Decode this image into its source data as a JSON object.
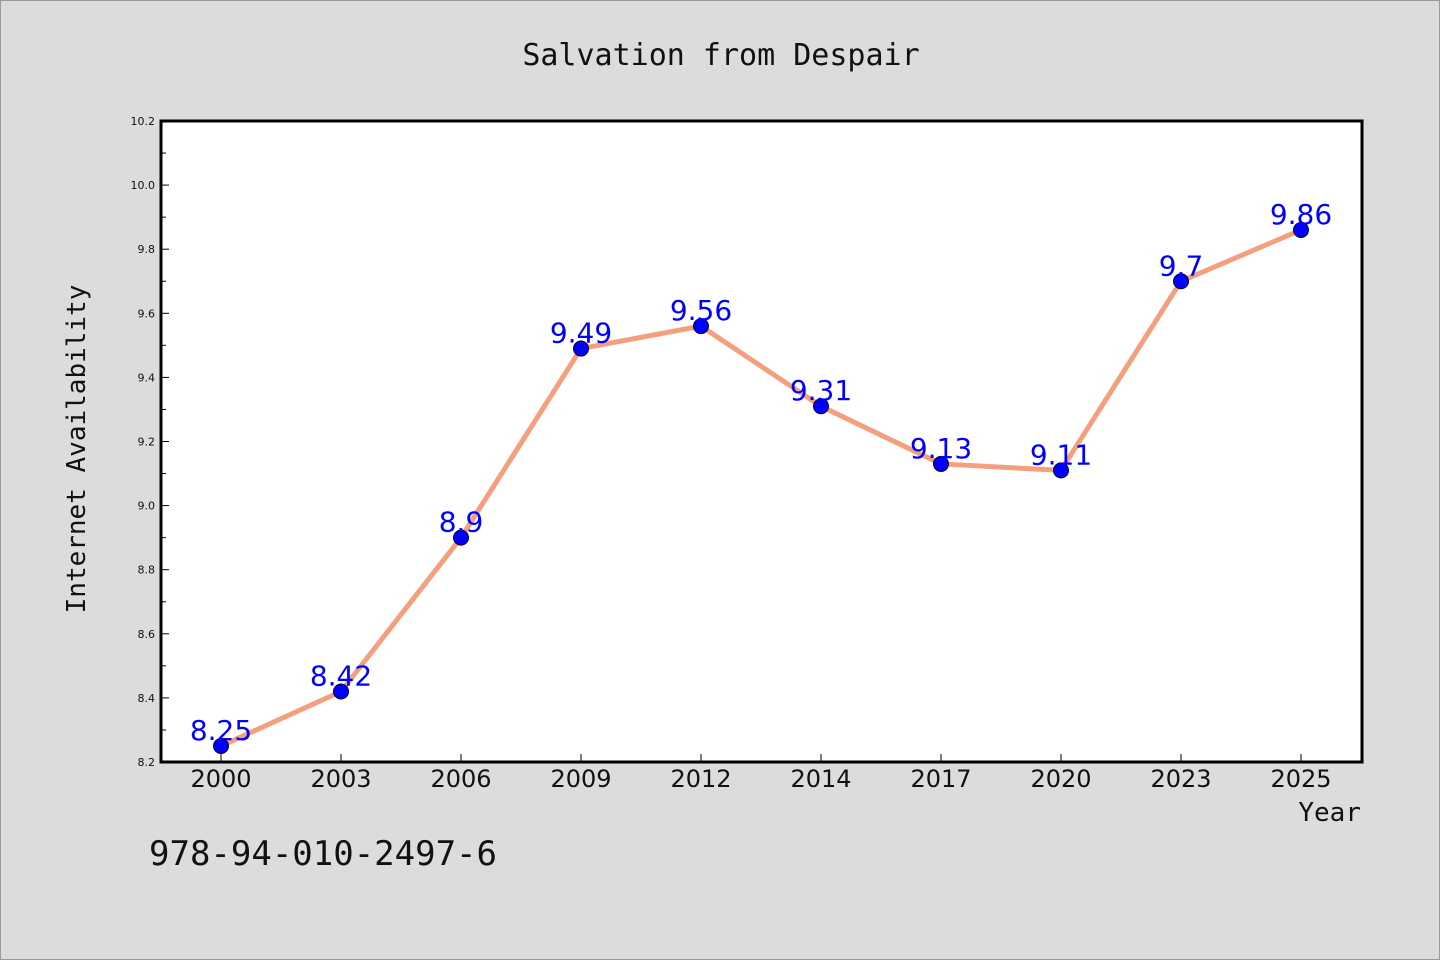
{
  "chart_data": {
    "type": "line",
    "title": "Salvation from Despair",
    "xlabel": "Year",
    "ylabel": "Internet Availability",
    "categories": [
      "2000",
      "2003",
      "2006",
      "2009",
      "2012",
      "2014",
      "2017",
      "2020",
      "2023",
      "2025"
    ],
    "series": [
      {
        "values": [
          8.25,
          8.42,
          8.9,
          9.49,
          9.56,
          9.31,
          9.13,
          9.11,
          9.7,
          9.86
        ],
        "labels": [
          "8.25",
          "8.42",
          "8.9",
          "9.49",
          "9.56",
          "9.31",
          "9.13",
          "9.11",
          "9.7",
          "9.86"
        ]
      }
    ],
    "ylim": [
      8.2,
      10.2
    ],
    "yticks": [
      "8.2",
      "8.4",
      "8.6",
      "8.8",
      "9.0",
      "9.2",
      "9.4",
      "9.6",
      "9.8",
      "10.0",
      "10.2"
    ],
    "grid": false,
    "line_color": "#f4a07e",
    "marker_color": "#0000ff",
    "label_color": "#0000ff",
    "background_color": "#dcdcdc",
    "plot_background": "#ffffff"
  },
  "footer": {
    "isbn": "978-94-010-2497-6"
  }
}
